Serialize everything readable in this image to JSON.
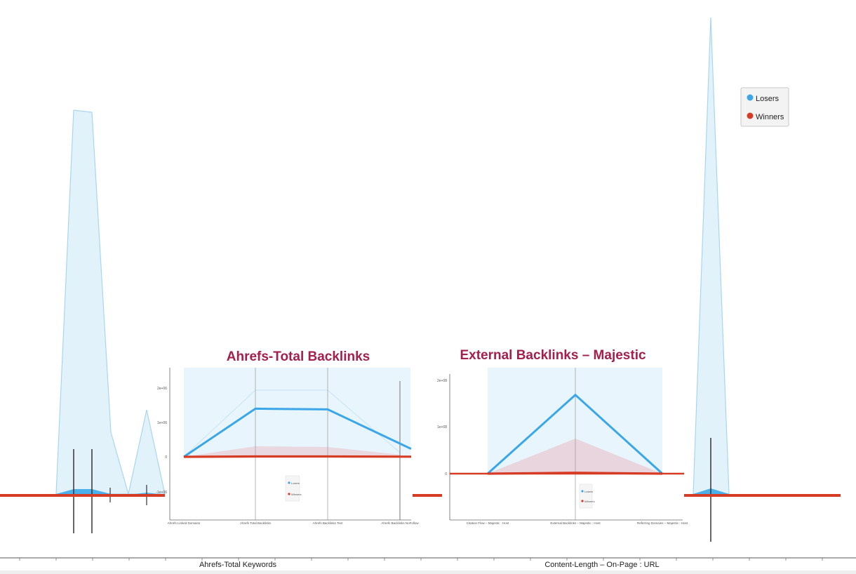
{
  "chart_data": [
    {
      "type": "area",
      "x_axis_labels": [
        "Ahrefs-Total Keywords",
        "Content-Length  –  On-Page  :  URL"
      ],
      "legend": {
        "placement": "top-right",
        "entries": [
          {
            "name": "Losers",
            "color": "#3ba7e8"
          },
          {
            "name": "Winners",
            "color": "#d63b24"
          }
        ]
      },
      "series": [
        {
          "name": "Losers",
          "peaks": [
            1.0,
            0.93,
            0.28,
            0.75,
            0.0
          ]
        },
        {
          "name": "Winners",
          "peaks": [
            0.01,
            0.01,
            0.01,
            0.01,
            0.01
          ]
        }
      ]
    },
    {
      "type": "line",
      "title": "Ahrefs-Total Backlinks",
      "categories": [
        "Ahrefs Linked Domains",
        "Ahrefs Total Backlinks",
        "Ahrefs Backlinks Text",
        "Ahrefs Backlinks NoFollow"
      ],
      "yticks": [
        "2e+06",
        "1e+06",
        "0",
        "-1e+06"
      ],
      "ylim": [
        -2000000,
        3000000
      ],
      "legend": [
        "Losers",
        "Winners"
      ],
      "series": [
        {
          "name": "Losers",
          "values": [
            0,
            1400000,
            1380000,
            230000
          ]
        },
        {
          "name": "Winners",
          "values": [
            0,
            10000,
            10000,
            5000
          ]
        }
      ],
      "band_max": [
        0,
        2000000,
        2000000,
        100000
      ]
    },
    {
      "type": "line",
      "title": "External Backlinks  –  Majestic",
      "categories": [
        "Citation Flow – Majestic : Host",
        "External Backlinks – Majestic : Host",
        "Referring Domains – Majestic : Host"
      ],
      "yticks": [
        "2e+08",
        "1e+08",
        "0"
      ],
      "ylim": [
        -50000000,
        210000000
      ],
      "legend": [
        "Losers",
        "Winners"
      ],
      "series": [
        {
          "name": "Losers",
          "values": [
            0,
            170000000,
            0
          ]
        },
        {
          "name": "Winners",
          "values": [
            0,
            2000000,
            0
          ]
        }
      ],
      "band_max": [
        0,
        75000000,
        0
      ]
    }
  ],
  "colors": {
    "losers_line": "#3ba7e8",
    "losers_fill": "#e2f2fb",
    "winners_line": "#d63b24",
    "title": "#a3204a"
  }
}
